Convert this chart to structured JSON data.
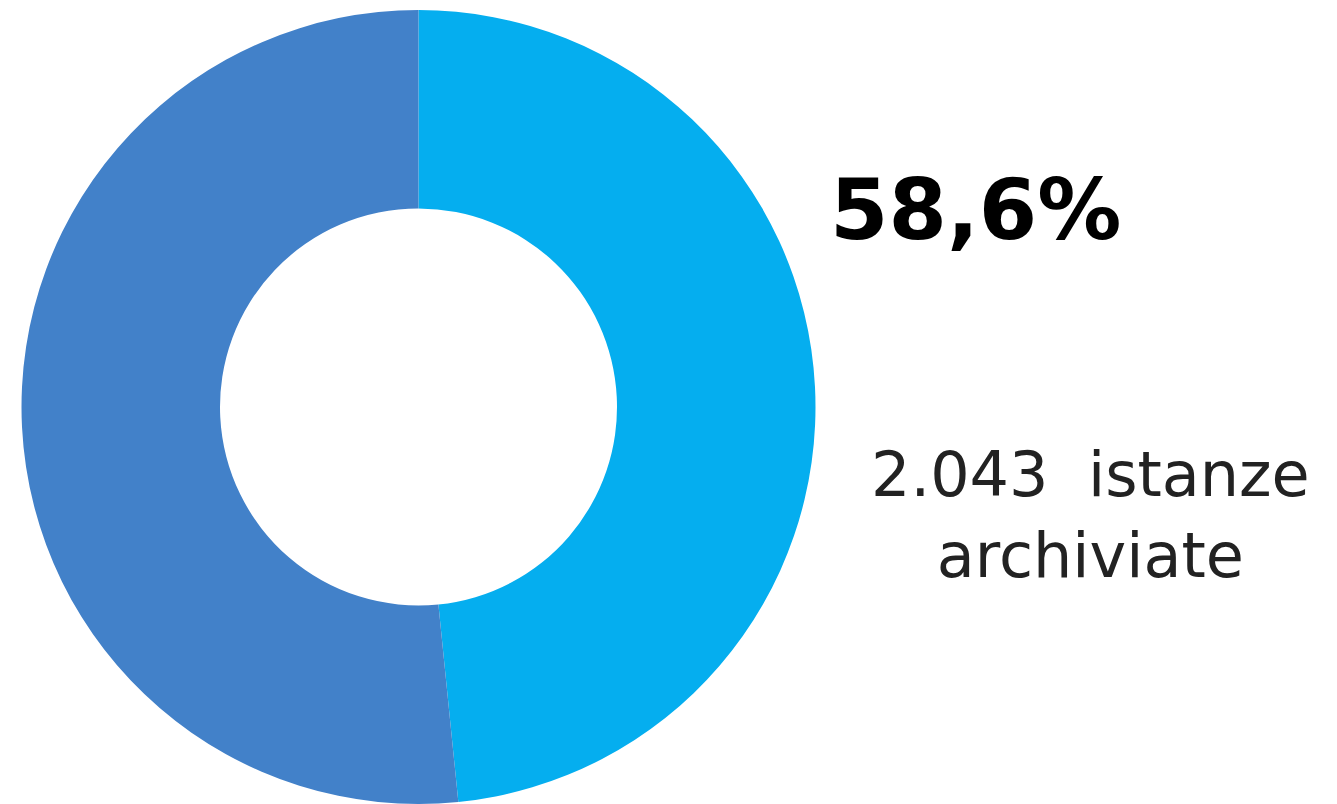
{
  "chart_data": {
    "type": "donut",
    "categories": [
      null,
      null
    ],
    "values": [
      48.4,
      51.6
    ],
    "colors": [
      "#05aeef",
      "#4281c9"
    ],
    "annotations": [
      "58,6%",
      "2.043  istanze\narchiviate"
    ],
    "legend": false
  }
}
